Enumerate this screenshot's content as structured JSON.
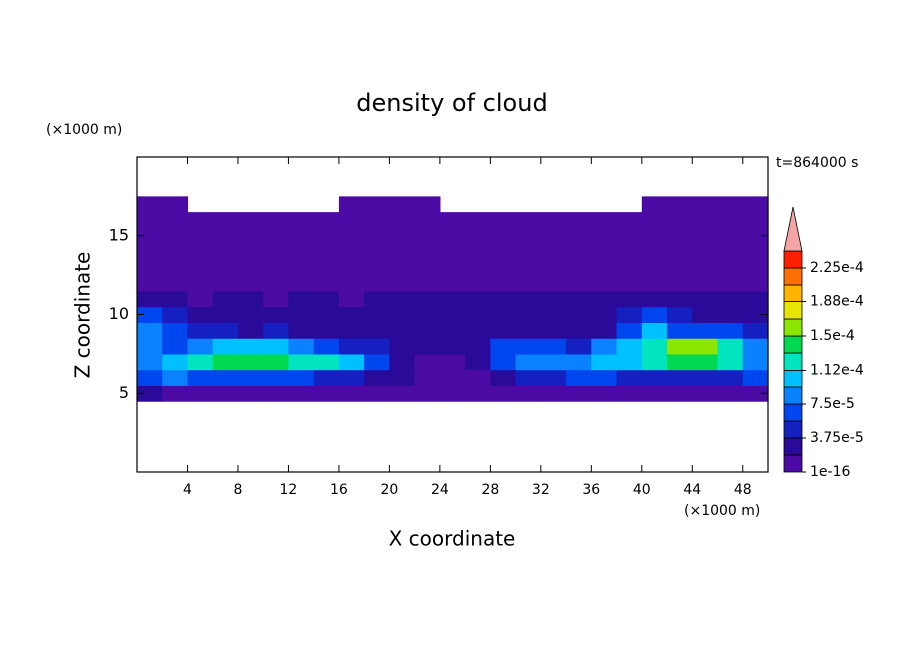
{
  "chart_data": {
    "type": "contour",
    "title": "density of cloud",
    "annotation": "t=864000 s",
    "xlabel": "X coordinate",
    "ylabel": "Z coordinate",
    "xunit": "(×1000 m)",
    "yunit": "(×1000 m)",
    "xlim": [
      0,
      50
    ],
    "ylim": [
      0,
      20
    ],
    "xticks": [
      4,
      8,
      12,
      16,
      20,
      24,
      28,
      32,
      36,
      40,
      44,
      48
    ],
    "yticks": [
      5,
      10,
      15
    ],
    "x": [
      1,
      3,
      5,
      7,
      9,
      11,
      13,
      15,
      17,
      19,
      21,
      23,
      25,
      27,
      29,
      31,
      33,
      35,
      37,
      39,
      41,
      43,
      45,
      47,
      49
    ],
    "y": [
      5,
      6,
      7,
      8,
      9,
      10,
      11,
      12,
      13,
      14,
      15,
      16,
      17
    ],
    "z": [
      [
        2.8e-05,
        5e-06,
        5e-06,
        5e-06,
        5e-06,
        5e-06,
        5e-06,
        5e-06,
        5e-06,
        5e-06,
        5e-06,
        5e-06,
        5e-06,
        5e-06,
        5e-06,
        5e-06,
        5e-06,
        5e-06,
        5e-06,
        5e-06,
        5e-06,
        5e-06,
        5e-06,
        5e-06,
        5e-06
      ],
      [
        6.5e-05,
        8.4e-05,
        6.5e-05,
        6.5e-05,
        6.5e-05,
        6.5e-05,
        6.5e-05,
        4.7e-05,
        4.7e-05,
        2.8e-05,
        2.8e-05,
        5e-06,
        5e-06,
        5e-06,
        2.8e-05,
        4.7e-05,
        4.7e-05,
        6.5e-05,
        6.5e-05,
        4.7e-05,
        4.7e-05,
        4.7e-05,
        4.7e-05,
        4.7e-05,
        6.5e-05
      ],
      [
        8.4e-05,
        0.000103,
        0.000122,
        0.00014,
        0.00014,
        0.00014,
        0.000122,
        0.000122,
        0.000103,
        6.5e-05,
        2.8e-05,
        5e-06,
        5e-06,
        2.8e-05,
        6.5e-05,
        8.4e-05,
        8.4e-05,
        8.4e-05,
        0.000103,
        0.000103,
        0.000122,
        0.00014,
        0.00014,
        0.000122,
        8.4e-05
      ],
      [
        8.4e-05,
        6.5e-05,
        8.4e-05,
        0.000103,
        0.000103,
        0.000103,
        8.4e-05,
        6.5e-05,
        4.7e-05,
        4.7e-05,
        2.8e-05,
        2.8e-05,
        2.8e-05,
        2.8e-05,
        6.5e-05,
        6.5e-05,
        6.5e-05,
        4.7e-05,
        8.4e-05,
        0.000103,
        0.000122,
        0.000159,
        0.000159,
        0.000122,
        8.4e-05
      ],
      [
        8.4e-05,
        6.5e-05,
        4.7e-05,
        4.7e-05,
        2.8e-05,
        4.7e-05,
        2.8e-05,
        2.8e-05,
        2.8e-05,
        2.8e-05,
        2.8e-05,
        2.8e-05,
        2.8e-05,
        2.8e-05,
        2.8e-05,
        2.8e-05,
        2.8e-05,
        2.8e-05,
        2.8e-05,
        6.5e-05,
        0.000103,
        6.5e-05,
        6.5e-05,
        6.5e-05,
        4.7e-05
      ],
      [
        6.5e-05,
        4.7e-05,
        2.8e-05,
        2.8e-05,
        2.8e-05,
        2.8e-05,
        2.8e-05,
        2.8e-05,
        2.8e-05,
        2.8e-05,
        2.8e-05,
        2.8e-05,
        2.8e-05,
        2.8e-05,
        2.8e-05,
        2.8e-05,
        2.8e-05,
        2.8e-05,
        2.8e-05,
        4.7e-05,
        6.5e-05,
        4.7e-05,
        2.8e-05,
        2.8e-05,
        2.8e-05
      ],
      [
        2.8e-05,
        2.8e-05,
        5e-06,
        2.8e-05,
        2.8e-05,
        5e-06,
        2.8e-05,
        2.8e-05,
        5e-06,
        2.8e-05,
        2.8e-05,
        2.8e-05,
        2.8e-05,
        2.8e-05,
        2.8e-05,
        2.8e-05,
        2.8e-05,
        2.8e-05,
        2.8e-05,
        2.8e-05,
        2.8e-05,
        2.8e-05,
        2.8e-05,
        2.8e-05,
        2.8e-05
      ],
      [
        5e-06,
        5e-06,
        5e-06,
        5e-06,
        5e-06,
        5e-06,
        5e-06,
        5e-06,
        5e-06,
        5e-06,
        5e-06,
        5e-06,
        5e-06,
        5e-06,
        5e-06,
        5e-06,
        5e-06,
        5e-06,
        5e-06,
        5e-06,
        5e-06,
        5e-06,
        5e-06,
        5e-06,
        5e-06
      ],
      [
        5e-06,
        5e-06,
        5e-06,
        5e-06,
        5e-06,
        5e-06,
        5e-06,
        5e-06,
        5e-06,
        5e-06,
        5e-06,
        5e-06,
        5e-06,
        5e-06,
        5e-06,
        5e-06,
        5e-06,
        5e-06,
        5e-06,
        5e-06,
        5e-06,
        5e-06,
        5e-06,
        5e-06,
        5e-06
      ],
      [
        5e-06,
        5e-06,
        5e-06,
        5e-06,
        5e-06,
        5e-06,
        5e-06,
        5e-06,
        5e-06,
        5e-06,
        5e-06,
        5e-06,
        5e-06,
        5e-06,
        5e-06,
        5e-06,
        5e-06,
        5e-06,
        5e-06,
        5e-06,
        5e-06,
        5e-06,
        5e-06,
        5e-06,
        5e-06
      ],
      [
        5e-06,
        5e-06,
        5e-06,
        5e-06,
        5e-06,
        5e-06,
        5e-06,
        5e-06,
        5e-06,
        5e-06,
        5e-06,
        5e-06,
        5e-06,
        5e-06,
        5e-06,
        5e-06,
        5e-06,
        5e-06,
        5e-06,
        5e-06,
        5e-06,
        5e-06,
        5e-06,
        5e-06,
        5e-06
      ],
      [
        5e-06,
        5e-06,
        5e-06,
        5e-06,
        5e-06,
        5e-06,
        5e-06,
        5e-06,
        5e-06,
        5e-06,
        5e-06,
        5e-06,
        5e-06,
        5e-06,
        5e-06,
        5e-06,
        5e-06,
        5e-06,
        5e-06,
        5e-06,
        5e-06,
        5e-06,
        5e-06,
        5e-06,
        5e-06
      ],
      [
        5e-06,
        5e-06,
        null,
        null,
        null,
        null,
        null,
        null,
        5e-06,
        5e-06,
        5e-06,
        5e-06,
        null,
        null,
        null,
        null,
        null,
        null,
        null,
        null,
        5e-06,
        5e-06,
        5e-06,
        5e-06,
        5e-06
      ]
    ],
    "colorbar": {
      "levels": [
        1e-16,
        1.875e-05,
        3.75e-05,
        5.625e-05,
        7.5e-05,
        9.375e-05,
        0.000112,
        0.00013125,
        0.00015,
        0.00016875,
        0.000188,
        0.00020625,
        0.000225,
        0.00024375
      ],
      "colors": [
        "#4c0aa4",
        "#2a0a98",
        "#1420c0",
        "#0046ee",
        "#0a82ff",
        "#00c0ff",
        "#00e4c0",
        "#00d850",
        "#8ce600",
        "#e6e600",
        "#ffb400",
        "#ff7000",
        "#ff2000"
      ],
      "extend_color": "#f4a4a4",
      "ticks": [
        {
          "value": 1e-16,
          "label": "1e-16"
        },
        {
          "value": 3.75e-05,
          "label": "3.75e-5"
        },
        {
          "value": 7.5e-05,
          "label": "7.5e-5"
        },
        {
          "value": 0.000112,
          "label": "1.12e-4"
        },
        {
          "value": 0.00015,
          "label": "1.5e-4"
        },
        {
          "value": 0.000188,
          "label": "1.88e-4"
        },
        {
          "value": 0.000225,
          "label": "2.25e-4"
        }
      ]
    }
  }
}
